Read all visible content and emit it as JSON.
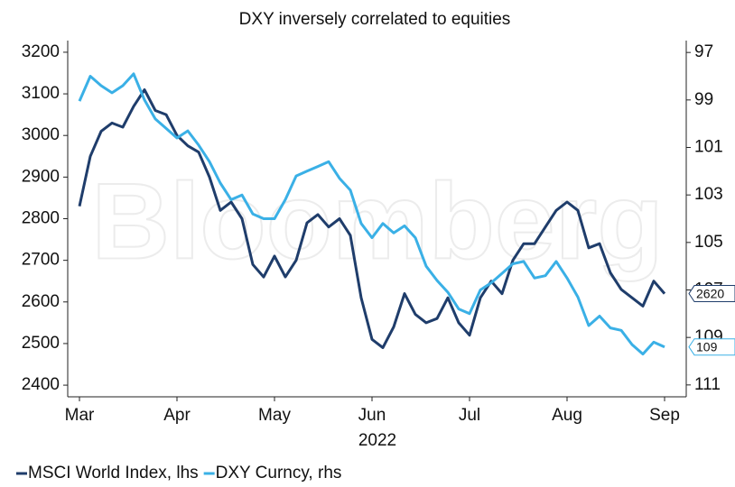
{
  "chart_data": {
    "type": "line",
    "title": "DXY inversely correlated to equities",
    "xlabel": "2022",
    "watermark": "Bloomberg",
    "categories": [
      "Mar",
      null,
      null,
      null,
      null,
      null,
      null,
      null,
      null,
      "Apr",
      null,
      null,
      null,
      null,
      null,
      null,
      null,
      null,
      "May",
      null,
      null,
      null,
      null,
      null,
      null,
      null,
      null,
      "Jun",
      null,
      null,
      null,
      null,
      null,
      null,
      null,
      null,
      "Jul",
      null,
      null,
      null,
      null,
      null,
      null,
      null,
      null,
      "Aug",
      null,
      null,
      null,
      null,
      null,
      null,
      null,
      null,
      "Sep"
    ],
    "series": [
      {
        "name": "MSCI World Index, lhs",
        "color": "#1f3d6b",
        "axis": "y",
        "last_label": "2620",
        "values": [
          2830,
          2950,
          3010,
          3030,
          3020,
          3070,
          3110,
          3060,
          3050,
          3000,
          2975,
          2960,
          2900,
          2820,
          2840,
          2800,
          2690,
          2660,
          2710,
          2660,
          2700,
          2790,
          2810,
          2780,
          2800,
          2760,
          2610,
          2510,
          2490,
          2540,
          2620,
          2570,
          2550,
          2560,
          2610,
          2550,
          2520,
          2610,
          2650,
          2620,
          2700,
          2740,
          2740,
          2780,
          2820,
          2840,
          2820,
          2730,
          2740,
          2670,
          2630,
          2610,
          2590,
          2650,
          2620
        ]
      },
      {
        "name": "DXY Curncy, rhs",
        "color": "#3ab0e6",
        "axis": "y2",
        "last_label": "109",
        "values": [
          99.05,
          98.0,
          98.4,
          98.7,
          98.4,
          97.9,
          99.0,
          99.8,
          100.2,
          100.6,
          100.3,
          100.9,
          101.6,
          102.5,
          103.2,
          103.0,
          103.8,
          104.0,
          104.0,
          103.2,
          102.2,
          102.0,
          101.8,
          101.6,
          102.3,
          102.8,
          104.2,
          104.8,
          104.2,
          104.6,
          104.3,
          104.8,
          106.0,
          106.6,
          107.1,
          107.8,
          108.0,
          107.0,
          106.7,
          106.3,
          105.9,
          105.8,
          106.5,
          106.4,
          105.8,
          106.5,
          107.3,
          108.5,
          108.1,
          108.6,
          108.7,
          109.3,
          109.7,
          109.2,
          109.4
        ]
      }
    ],
    "ylim": [
      2372,
      3228
    ],
    "yticks": [
      2400,
      2500,
      2600,
      2700,
      2800,
      2900,
      3000,
      3100,
      3200
    ],
    "y2lim": [
      111.5,
      96.5
    ],
    "y2ticks": [
      97,
      99,
      101,
      103,
      105,
      107,
      109,
      111
    ]
  }
}
